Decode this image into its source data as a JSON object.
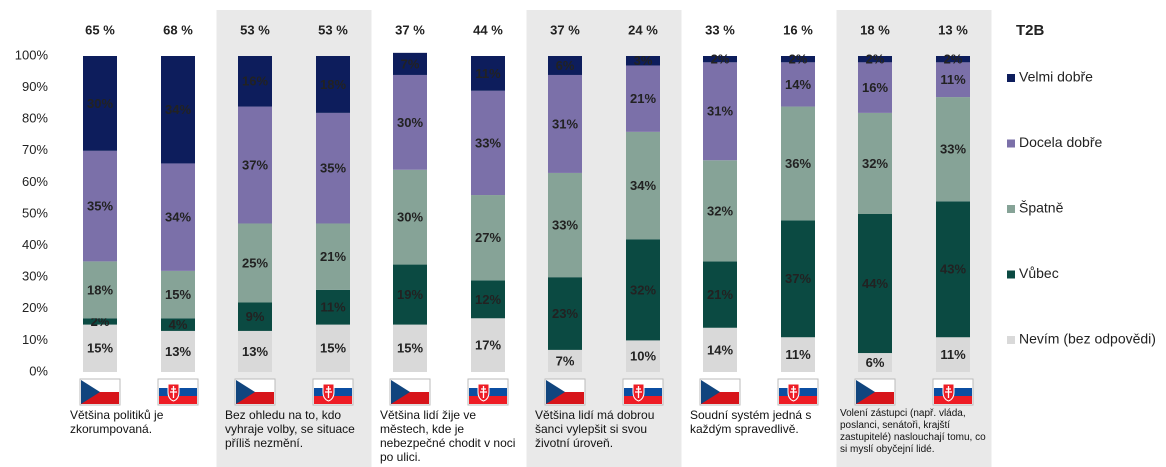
{
  "chart_data": {
    "type": "stacked_bar",
    "categories": [
      null,
      null,
      null,
      null,
      null,
      null,
      null,
      null,
      null,
      null,
      null,
      null
    ],
    "groups": [
      "Většina politiků je zkorumpovaná.",
      "Bez ohledu na to, kdo vyhraje volby, se situace příliš nezmění.",
      "Většina lidí žije ve městech, kde je nebezpečné chodit v noci po ulici.",
      "Většina lidí má dobrou šanci vylepšit si svou životní úroveň.",
      "Soudní systém jedná s každým spravedlivě.",
      "Volení zástupci (např. vláda, poslanci, senátoři, krajští zastupitelé) naslouchají tomu, co si myslí obyčejní lidé."
    ],
    "ylim": [
      0,
      100
    ],
    "yticks": [
      {
        "value": 0,
        "label": "0%"
      },
      {
        "value": 10,
        "label": "10%"
      },
      {
        "value": 20,
        "label": "20%"
      },
      {
        "value": 30,
        "label": "30%"
      },
      {
        "value": 40,
        "label": "40%"
      },
      {
        "value": 50,
        "label": "50%"
      },
      {
        "value": 60,
        "label": "60%"
      },
      {
        "value": 70,
        "label": "70%"
      },
      {
        "value": 80,
        "label": "80%"
      },
      {
        "value": 90,
        "label": "90%"
      },
      {
        "value": 100,
        "label": "100%"
      }
    ],
    "grid": false,
    "legend": "right",
    "t2b": {
      "label": "T2B",
      "values": [
        65,
        68,
        53,
        53,
        37,
        44,
        37,
        24,
        33,
        16,
        18,
        13
      ],
      "value_labels": [
        "65 %",
        "68 %",
        "53 %",
        "53 %",
        "37 %",
        "44 %",
        "37 %",
        "24 %",
        "33 %",
        "16 %",
        "18 %",
        "13 %"
      ]
    },
    "series": [
      {
        "name": "Nevím (bez odpovědi)",
        "color": "#d9d9d9",
        "label_color": "#f2f2f2",
        "values": [
          15,
          13,
          13,
          15,
          15,
          17,
          7,
          10,
          14,
          11,
          6,
          11
        ],
        "value_labels": [
          "15%",
          "13%",
          "13%",
          "15%",
          "15%",
          "17%",
          "7%",
          "10%",
          "14%",
          "11%",
          "6%",
          "11%"
        ]
      },
      {
        "name": "Vůbec",
        "color": "#0b4a42",
        "label_color": "#ffffff",
        "values": [
          2,
          4,
          9,
          11,
          19,
          12,
          23,
          32,
          21,
          37,
          44,
          43
        ],
        "value_labels": [
          "2%",
          "4%",
          "9%",
          "11%",
          "19%",
          "12%",
          "23%",
          "32%",
          "21%",
          "37%",
          "44%",
          "43%"
        ]
      },
      {
        "name": "Špatně",
        "color": "#86a397",
        "label_color": "#ffffff",
        "values": [
          18,
          15,
          25,
          21,
          30,
          27,
          33,
          34,
          32,
          36,
          32,
          33
        ],
        "value_labels": [
          "18%",
          "15%",
          "25%",
          "21%",
          "30%",
          "27%",
          "33%",
          "34%",
          "32%",
          "36%",
          "32%",
          "33%"
        ]
      },
      {
        "name": "Docela dobře",
        "color": "#7b70a9",
        "label_color": "#ffffff",
        "values": [
          35,
          34,
          37,
          35,
          30,
          33,
          31,
          21,
          31,
          14,
          16,
          11
        ],
        "value_labels": [
          "35%",
          "34%",
          "37%",
          "35%",
          "30%",
          "33%",
          "31%",
          "21%",
          "31%",
          "14%",
          "16%",
          "11%"
        ]
      },
      {
        "name": "Velmi dobře",
        "color": "#0d1d5c",
        "label_color": "#ffffff",
        "values": [
          30,
          34,
          16,
          18,
          7,
          11,
          6,
          3,
          2,
          2,
          2,
          2
        ],
        "value_labels": [
          "30%",
          "34%",
          "16%",
          "18%",
          "7%",
          "11%",
          "6%",
          "3%",
          "2%",
          "2%",
          "2%",
          "2%"
        ]
      }
    ]
  }
}
